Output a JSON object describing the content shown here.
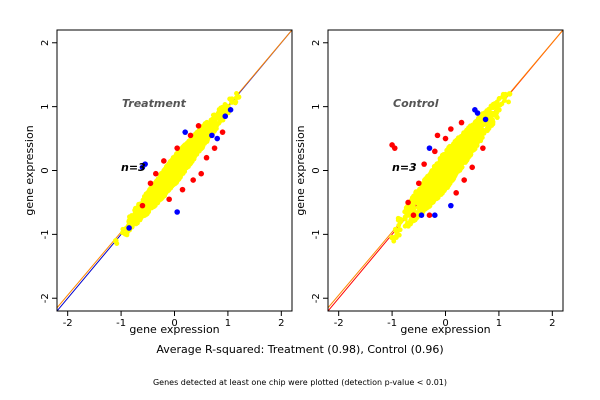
{
  "chart_data": [
    {
      "type": "scatter",
      "title": "Treatment",
      "annotation": "n=3",
      "xlabel": "gene expression",
      "ylabel": "gene expression",
      "xlim": [
        -2.2,
        2.2
      ],
      "ylim": [
        -2.2,
        2.2
      ],
      "xticks": [
        "-2",
        "-1",
        "0",
        "1",
        "2"
      ],
      "yticks": [
        "-2",
        "-1",
        "0",
        "1",
        "2"
      ],
      "grid": false,
      "reference_lines": [
        {
          "color": "#0000cc",
          "from": [
            -2.2,
            -2.2
          ],
          "to": [
            2.2,
            2.2
          ]
        },
        {
          "color": "#ff8800",
          "from": [
            -2.2,
            -2.15
          ],
          "to": [
            2.2,
            2.2
          ]
        }
      ],
      "series": [
        {
          "color": "#ffff00",
          "points": [
            [
              -1.1,
              -1.1
            ],
            [
              -0.8,
              -0.75
            ],
            [
              -0.5,
              -0.45
            ],
            [
              -0.2,
              -0.15
            ],
            [
              0.1,
              0.1
            ],
            [
              0.4,
              0.4
            ],
            [
              0.7,
              0.7
            ],
            [
              1.0,
              1.0
            ],
            [
              1.2,
              1.15
            ]
          ]
        },
        {
          "color": "#ff0000",
          "points": [
            [
              -0.35,
              -0.05
            ],
            [
              -0.2,
              0.15
            ],
            [
              0.05,
              0.35
            ],
            [
              0.15,
              -0.3
            ],
            [
              0.35,
              -0.15
            ],
            [
              0.5,
              -0.05
            ],
            [
              0.6,
              0.2
            ],
            [
              0.75,
              0.35
            ],
            [
              0.9,
              0.6
            ],
            [
              -0.6,
              -0.55
            ],
            [
              -0.45,
              -0.2
            ],
            [
              0.3,
              0.55
            ],
            [
              0.45,
              0.7
            ],
            [
              -0.1,
              -0.45
            ]
          ]
        },
        {
          "color": "#0000ff",
          "points": [
            [
              -0.55,
              0.1
            ],
            [
              -0.6,
              0.05
            ],
            [
              0.05,
              -0.65
            ],
            [
              0.7,
              0.55
            ],
            [
              0.8,
              0.5
            ],
            [
              0.2,
              0.6
            ],
            [
              -0.85,
              -0.9
            ],
            [
              0.95,
              0.85
            ],
            [
              1.05,
              0.95
            ]
          ]
        }
      ]
    },
    {
      "type": "scatter",
      "title": "Control",
      "annotation": "n=3",
      "xlabel": "gene expression",
      "ylabel": "gene expression",
      "xlim": [
        -2.2,
        2.2
      ],
      "ylim": [
        -2.2,
        2.2
      ],
      "xticks": [
        "-2",
        "-1",
        "0",
        "1",
        "2"
      ],
      "yticks": [
        "-2",
        "-1",
        "0",
        "1",
        "2"
      ],
      "grid": false,
      "reference_lines": [
        {
          "color": "#ff0000",
          "from": [
            -2.2,
            -2.2
          ],
          "to": [
            2.2,
            2.2
          ]
        },
        {
          "color": "#ff8800",
          "from": [
            -2.2,
            -2.15
          ],
          "to": [
            2.2,
            2.2
          ]
        }
      ],
      "series": [
        {
          "color": "#ffff00",
          "points": [
            [
              -1.0,
              -1.05
            ],
            [
              -0.7,
              -0.6
            ],
            [
              -0.4,
              -0.35
            ],
            [
              -0.1,
              -0.05
            ],
            [
              0.2,
              0.2
            ],
            [
              0.5,
              0.5
            ],
            [
              0.8,
              0.75
            ],
            [
              1.0,
              0.95
            ],
            [
              1.2,
              1.2
            ]
          ]
        },
        {
          "color": "#ff0000",
          "points": [
            [
              -0.5,
              -0.2
            ],
            [
              -0.4,
              0.1
            ],
            [
              -0.2,
              0.3
            ],
            [
              0.0,
              0.5
            ],
            [
              0.2,
              -0.35
            ],
            [
              0.35,
              -0.15
            ],
            [
              0.5,
              0.05
            ],
            [
              0.7,
              0.35
            ],
            [
              -0.7,
              -0.5
            ],
            [
              -0.6,
              -0.7
            ],
            [
              0.1,
              0.65
            ],
            [
              -0.3,
              -0.7
            ],
            [
              0.3,
              0.75
            ],
            [
              -0.15,
              0.55
            ],
            [
              -1.0,
              0.4
            ],
            [
              -0.95,
              0.35
            ]
          ]
        },
        {
          "color": "#0000ff",
          "points": [
            [
              -0.2,
              -0.7
            ],
            [
              0.6,
              0.9
            ],
            [
              0.75,
              0.8
            ],
            [
              -0.3,
              0.35
            ],
            [
              0.1,
              -0.55
            ],
            [
              -0.45,
              -0.7
            ],
            [
              0.55,
              0.95
            ]
          ]
        }
      ]
    }
  ],
  "captions": {
    "r_squared": "Average R-squared: Treatment (0.98), Control (0.96)",
    "note": "Genes detected at least one chip were plotted (detection p-value < 0.01)"
  }
}
